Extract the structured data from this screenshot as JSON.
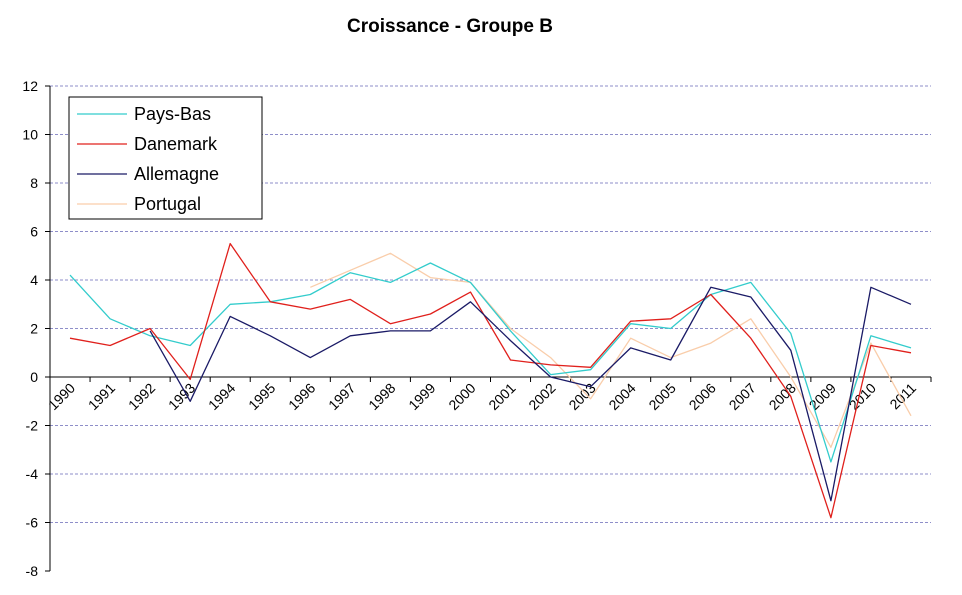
{
  "chart_data": {
    "type": "line",
    "title": "Croissance - Groupe B",
    "xlabel": "",
    "ylabel": "",
    "ylim": [
      -8,
      12
    ],
    "yticks": [
      "12",
      "10",
      "8",
      "6",
      "4",
      "2",
      "0",
      "-2",
      "-4",
      "-6",
      "-8"
    ],
    "grid": "horizontal dashed",
    "legend_position": "top-left",
    "categories": [
      "1990",
      "1991",
      "1992",
      "1993",
      "1994",
      "1995",
      "1996",
      "1997",
      "1998",
      "1999",
      "2000",
      "2001",
      "2002",
      "2003",
      "2004",
      "2005",
      "2006",
      "2007",
      "2008",
      "2009",
      "2010",
      "2011"
    ],
    "series": [
      {
        "name": "Pays-Bas",
        "color": "#33CCCC",
        "values": [
          4.2,
          2.4,
          1.7,
          1.3,
          3.0,
          3.1,
          3.4,
          4.3,
          3.9,
          4.7,
          3.9,
          1.9,
          0.1,
          0.3,
          2.2,
          2.0,
          3.4,
          3.9,
          1.8,
          -3.5,
          1.7,
          1.2
        ]
      },
      {
        "name": "Danemark",
        "color": "#E0201C",
        "values": [
          1.6,
          1.3,
          2.0,
          -0.1,
          5.5,
          3.1,
          2.8,
          3.2,
          2.2,
          2.6,
          3.5,
          0.7,
          0.5,
          0.4,
          2.3,
          2.4,
          3.4,
          1.6,
          -0.8,
          -5.8,
          1.3,
          1.0
        ]
      },
      {
        "name": "Allemagne",
        "color": "#1A1A66",
        "values": [
          null,
          null,
          1.9,
          -1.0,
          2.5,
          1.7,
          0.8,
          1.7,
          1.9,
          1.9,
          3.1,
          1.5,
          0.0,
          -0.4,
          1.2,
          0.7,
          3.7,
          3.3,
          1.1,
          -5.1,
          3.7,
          3.0
        ]
      },
      {
        "name": "Portugal",
        "color": "#F9CDAA",
        "values": [
          null,
          null,
          null,
          null,
          null,
          null,
          3.7,
          4.4,
          5.1,
          4.1,
          3.9,
          2.0,
          0.8,
          -0.9,
          1.6,
          0.8,
          1.4,
          2.4,
          0.0,
          -2.9,
          1.4,
          -1.6
        ]
      }
    ]
  }
}
